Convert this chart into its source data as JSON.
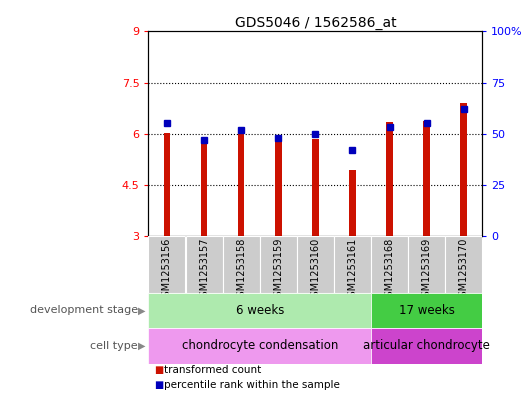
{
  "title": "GDS5046 / 1562586_at",
  "samples": [
    "GSM1253156",
    "GSM1253157",
    "GSM1253158",
    "GSM1253159",
    "GSM1253160",
    "GSM1253161",
    "GSM1253168",
    "GSM1253169",
    "GSM1253170"
  ],
  "red_values": [
    6.02,
    5.8,
    5.98,
    5.85,
    5.85,
    4.92,
    6.35,
    6.38,
    6.9
  ],
  "blue_values": [
    55,
    47,
    52,
    48,
    50,
    42,
    53,
    55,
    62
  ],
  "ylim_left": [
    3,
    9
  ],
  "ylim_right": [
    0,
    100
  ],
  "yticks_left": [
    3,
    4.5,
    6,
    7.5,
    9
  ],
  "yticks_right": [
    0,
    25,
    50,
    75,
    100
  ],
  "ytick_labels_left": [
    "3",
    "4.5",
    "6",
    "7.5",
    "9"
  ],
  "ytick_labels_right": [
    "0",
    "25",
    "50",
    "75",
    "100%"
  ],
  "hlines": [
    4.5,
    6.0,
    7.5
  ],
  "bar_bottom": 3,
  "dev_stage_groups": [
    {
      "label": "6 weeks",
      "start": 0,
      "end": 6,
      "color": "#aeeaae"
    },
    {
      "label": "17 weeks",
      "start": 6,
      "end": 9,
      "color": "#44cc44"
    }
  ],
  "cell_type_groups": [
    {
      "label": "chondrocyte condensation",
      "start": 0,
      "end": 6,
      "color": "#ee99ee"
    },
    {
      "label": "articular chondrocyte",
      "start": 6,
      "end": 9,
      "color": "#cc44cc"
    }
  ],
  "dev_stage_label": "development stage",
  "cell_type_label": "cell type",
  "legend_red": "transformed count",
  "legend_blue": "percentile rank within the sample",
  "bar_color": "#CC1100",
  "blue_color": "#0000BB",
  "bar_width": 0.18,
  "title_fontsize": 10,
  "tick_fontsize": 8,
  "sample_fontsize": 7
}
